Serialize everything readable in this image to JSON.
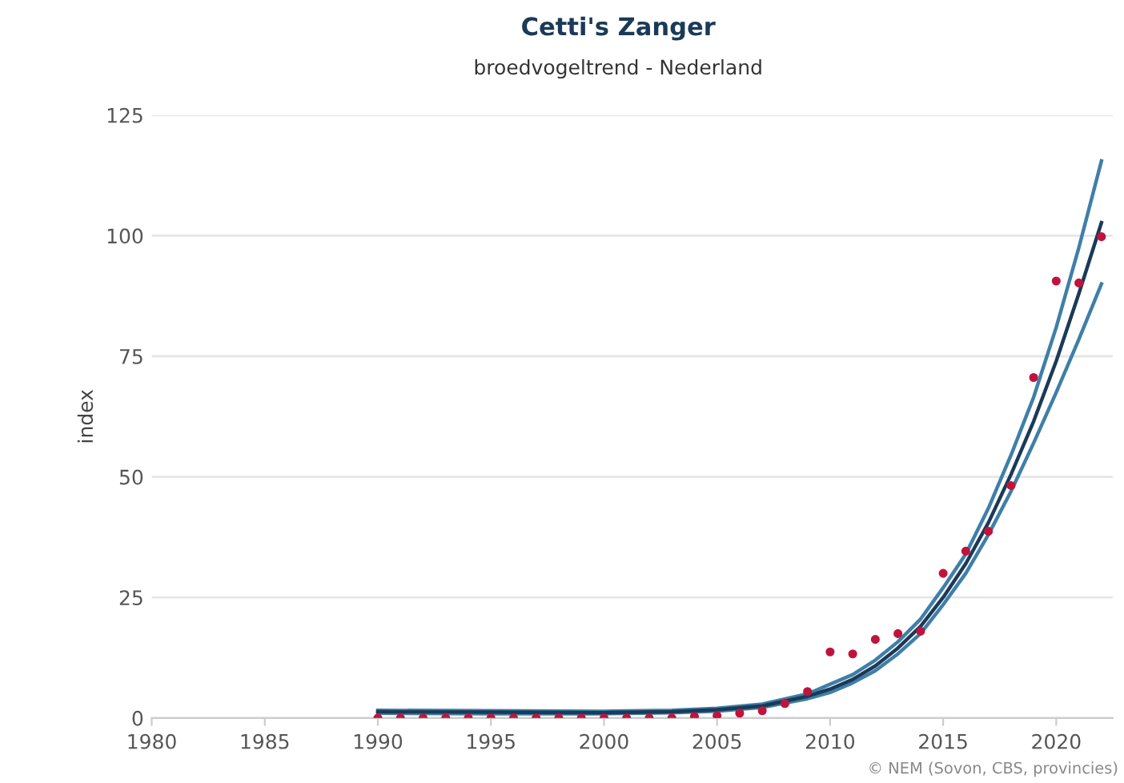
{
  "chart_data": {
    "type": "line",
    "title": "Cetti's Zanger",
    "subtitle": "broedvogeltrend - Nederland",
    "ylabel": "index",
    "xlim": [
      1980,
      2022.5
    ],
    "xticks": [
      1980,
      1985,
      1990,
      1995,
      2000,
      2005,
      2010,
      2015,
      2020
    ],
    "ylim": [
      0,
      125
    ],
    "yticks": [
      0,
      25,
      50,
      75,
      100,
      125
    ],
    "grid": "y",
    "series": [
      {
        "color": "#3f7fa8",
        "x": [
          1990,
          1995,
          2000,
          2003,
          2005,
          2007,
          2009,
          2010,
          2011,
          2012,
          2013,
          2014,
          2015,
          2016,
          2017,
          2018,
          2019,
          2020,
          2021,
          2022
        ],
        "values": [
          1,
          0.9,
          0.9,
          1.1,
          1.4,
          2.2,
          4,
          5.3,
          7.3,
          9.8,
          13.3,
          17.5,
          23.5,
          30,
          38,
          47,
          57,
          67.5,
          78.5,
          90
        ]
      },
      {
        "color": "#3f7fa8",
        "x": [
          1990,
          1995,
          2000,
          2003,
          2005,
          2007,
          2009,
          2010,
          2011,
          2012,
          2013,
          2014,
          2015,
          2016,
          2017,
          2018,
          2019,
          2020,
          2021,
          2022
        ],
        "values": [
          1.6,
          1.5,
          1.4,
          1.6,
          2,
          2.9,
          5,
          7,
          9,
          12,
          15.8,
          20.5,
          27,
          34,
          43.5,
          54.5,
          66.5,
          81,
          97.5,
          115.5
        ]
      },
      {
        "color": "#1b3a57",
        "x": [
          1990,
          1995,
          2000,
          2003,
          2005,
          2007,
          2009,
          2010,
          2011,
          2012,
          2013,
          2014,
          2015,
          2016,
          2017,
          2018,
          2019,
          2020,
          2021,
          2022
        ],
        "values": [
          1.3,
          1.2,
          1.1,
          1.3,
          1.7,
          2.5,
          4.5,
          6,
          8,
          10.8,
          14.5,
          19,
          25,
          32,
          40.5,
          50.5,
          61.5,
          74,
          88,
          102.7
        ]
      },
      {
        "type": "scatter",
        "color": "#c0143c",
        "x": [
          1990,
          1991,
          1992,
          1993,
          1994,
          1995,
          1996,
          1997,
          1998,
          1999,
          2000,
          2001,
          2002,
          2003,
          2004,
          2005,
          2006,
          2007,
          2008,
          2009,
          2010,
          2011,
          2012,
          2013,
          2014,
          2015,
          2016,
          2017,
          2018,
          2019,
          2020,
          2021,
          2022
        ],
        "values": [
          0,
          0,
          0,
          0,
          0,
          0,
          0,
          0,
          0,
          0,
          0,
          0,
          0,
          0,
          0.3,
          0.5,
          1,
          1.5,
          3,
          5.5,
          13.7,
          13.3,
          16.3,
          17.5,
          18,
          30,
          34.6,
          38.7,
          48.2,
          70.6,
          90.6,
          90.2,
          99.8
        ]
      }
    ],
    "annotations": [
      "© NEM (Sovon, CBS, provincies)"
    ]
  }
}
